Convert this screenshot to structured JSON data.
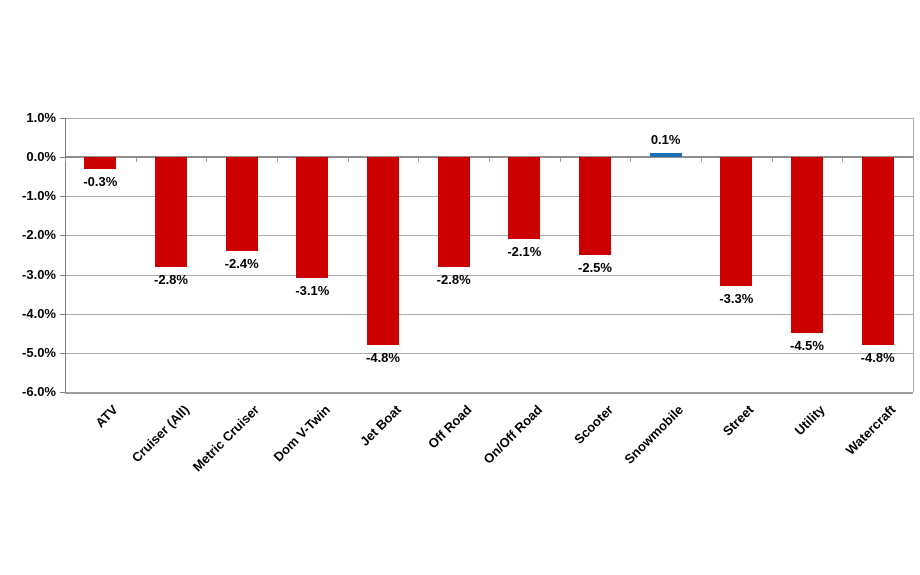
{
  "chart_data": {
    "type": "bar",
    "title": "",
    "xlabel": "",
    "ylabel": "",
    "categories": [
      "ATV",
      "Cruiser (All)",
      "Metric Cruiser",
      "Dom V-Twin",
      "Jet Boat",
      "Off Road",
      "On/Off Road",
      "Scooter",
      "Snowmobile",
      "Street",
      "Utility",
      "Watercraft"
    ],
    "values": [
      -0.3,
      -2.8,
      -2.4,
      -3.1,
      -4.8,
      -2.8,
      -2.1,
      -2.5,
      0.1,
      -3.3,
      -4.5,
      -4.8
    ],
    "value_labels": [
      "-0.3%",
      "-2.8%",
      "-2.4%",
      "-3.1%",
      "-4.8%",
      "-2.8%",
      "-2.1%",
      "-2.5%",
      "0.1%",
      "-3.3%",
      "-4.5%",
      "-4.8%"
    ],
    "ylim": [
      -6.0,
      1.0
    ],
    "ytick_step": 1.0,
    "ytick_labels": [
      "1.0%",
      "0.0%",
      "-1.0%",
      "-2.0%",
      "-3.0%",
      "-4.0%",
      "-5.0%",
      "-6.0%"
    ],
    "grid": true,
    "legend": false,
    "colors": {
      "bar_negative": "#CC0000",
      "bar_positive": "#1F6FB5",
      "gridline": "#ABABAB",
      "axis": "#7F7F7F",
      "label": "#000000"
    }
  }
}
